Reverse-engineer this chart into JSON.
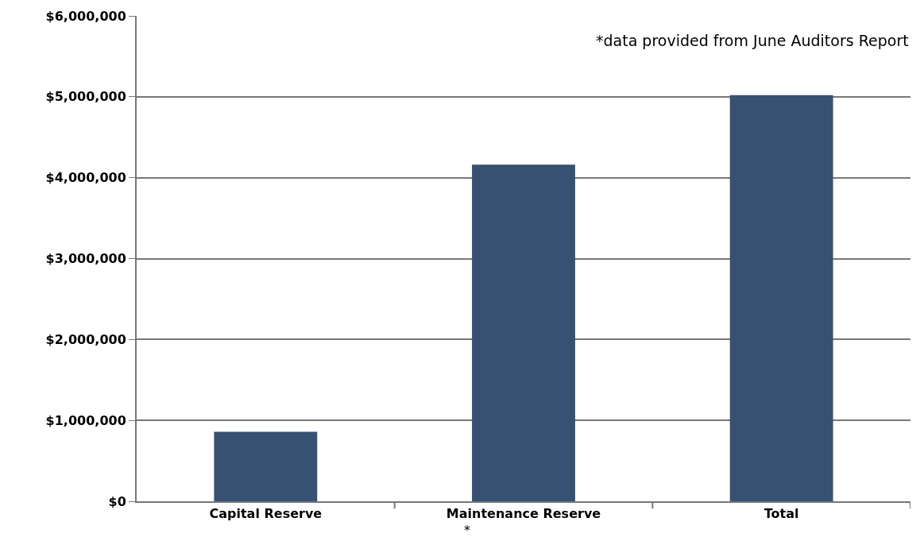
{
  "chart_data": {
    "type": "bar",
    "categories": [
      "Capital Reserve",
      "Maintenance Reserve",
      "Total"
    ],
    "values": [
      860000,
      4160000,
      5020000
    ],
    "color": "#375172",
    "ylim": [
      0,
      6000000
    ],
    "yticks": [
      {
        "value": 0,
        "label": "$0"
      },
      {
        "value": 1000000,
        "label": "$1,000,000"
      },
      {
        "value": 2000000,
        "label": "$2,000,000"
      },
      {
        "value": 3000000,
        "label": "$3,000,000"
      },
      {
        "value": 4000000,
        "label": "$4,000,000"
      },
      {
        "value": 5000000,
        "label": "$5,000,000"
      },
      {
        "value": 6000000,
        "label": "$6,000,000"
      }
    ],
    "grid": "y",
    "annotations": [
      "*data provided from June Auditors Report",
      "*"
    ]
  }
}
